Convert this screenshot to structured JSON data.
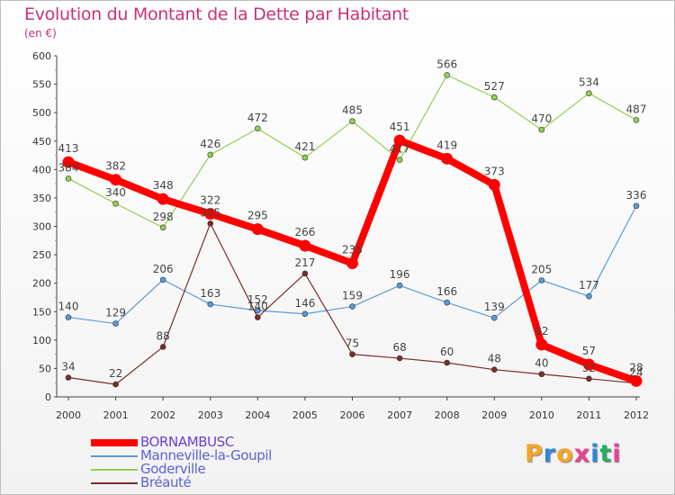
{
  "header": {
    "title": "Evolution du Montant de la Dette par Habitant",
    "unit": "(en €)"
  },
  "logo": {
    "text": "Proxiti",
    "colors": [
      "#f5a623",
      "#2e86de",
      "#f5a623",
      "#e84393",
      "#2e86de",
      "#27ae60",
      "#e84393"
    ]
  },
  "chart_data": {
    "type": "line",
    "title": "Evolution du Montant de la Dette par Habitant",
    "ylabel": "(en €)",
    "xlabel": "",
    "x": [
      "2000",
      "2001",
      "2002",
      "2003",
      "2004",
      "2005",
      "2006",
      "2007",
      "2008",
      "2009",
      "2010",
      "2011",
      "2012"
    ],
    "ylim": [
      0,
      600
    ],
    "yticks": [
      0,
      50,
      100,
      150,
      200,
      250,
      300,
      350,
      400,
      450,
      500,
      550,
      600
    ],
    "grid": false,
    "legend_position": "bottom-left",
    "series": [
      {
        "name": "BORNAMBUSC",
        "color": "#ff0000",
        "thick": true,
        "values": [
          413,
          382,
          348,
          322,
          295,
          266,
          235,
          451,
          419,
          373,
          92,
          57,
          28
        ]
      },
      {
        "name": "Manneville-la-Goupil",
        "color": "#5b9bd5",
        "thick": false,
        "values": [
          140,
          129,
          206,
          163,
          152,
          146,
          159,
          196,
          166,
          139,
          205,
          177,
          336
        ]
      },
      {
        "name": "Goderville",
        "color": "#8fd14f",
        "thick": false,
        "values": [
          384,
          340,
          298,
          426,
          472,
          421,
          485,
          417,
          566,
          527,
          470,
          534,
          487
        ]
      },
      {
        "name": "Bréauté",
        "color": "#7b2c2c",
        "thick": false,
        "values": [
          34,
          22,
          88,
          305,
          140,
          217,
          75,
          68,
          60,
          48,
          40,
          32,
          24
        ]
      }
    ]
  }
}
